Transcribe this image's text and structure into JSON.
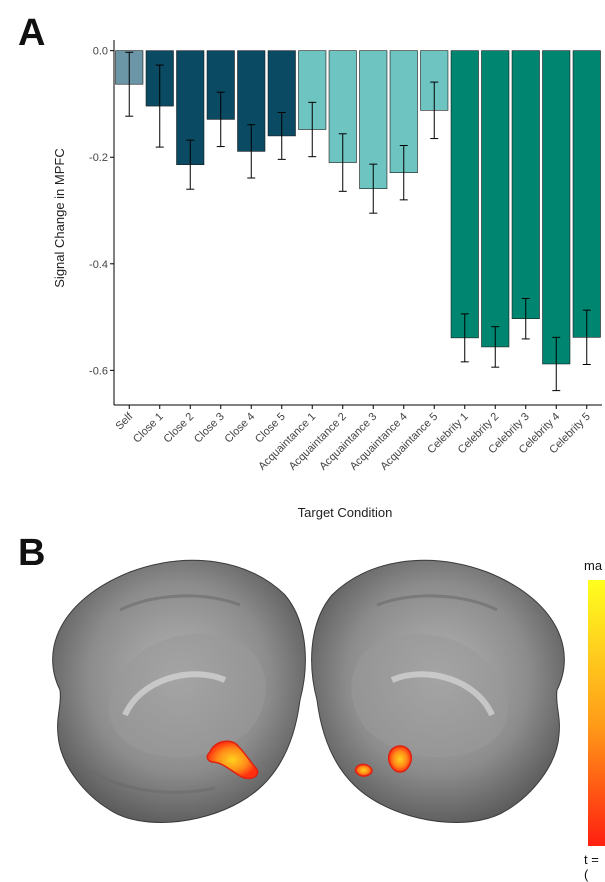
{
  "panels": {
    "a_label": "A",
    "b_label": "B"
  },
  "chart_data": {
    "type": "bar",
    "title": "",
    "xlabel": "Target Condition",
    "ylabel": "Signal Change in MPFC",
    "ylim": [
      -0.665,
      0.02
    ],
    "yticks": [
      0.0,
      -0.2,
      -0.4,
      -0.6
    ],
    "ytick_labels": [
      "0.0",
      "-0.2",
      "-0.4",
      "-0.6"
    ],
    "grid": false,
    "legend": "none",
    "categories": [
      "Self",
      "Close 1",
      "Close 2",
      "Close 3",
      "Close 4",
      "Close 5",
      "Acquaintance 1",
      "Acquaintance 2",
      "Acquaintance 3",
      "Acquaintance 4",
      "Acquaintance 5",
      "Celebrity 1",
      "Celebrity 2",
      "Celebrity 3",
      "Celebrity 4",
      "Celebrity 5"
    ],
    "values": [
      -0.063,
      -0.104,
      -0.214,
      -0.129,
      -0.189,
      -0.16,
      -0.148,
      -0.21,
      -0.259,
      -0.229,
      -0.112,
      -0.539,
      -0.556,
      -0.503,
      -0.588,
      -0.538
    ],
    "error": [
      0.06,
      0.077,
      0.046,
      0.051,
      0.05,
      0.044,
      0.051,
      0.054,
      0.046,
      0.051,
      0.053,
      0.045,
      0.038,
      0.038,
      0.05,
      0.051
    ],
    "colors": [
      "#6a96a8",
      "#0a4a63",
      "#0a4a63",
      "#0a4a63",
      "#0a4a63",
      "#0a4a63",
      "#6ec4c1",
      "#6ec4c1",
      "#6ec4c1",
      "#6ec4c1",
      "#6ec4c1",
      "#008570",
      "#008570",
      "#008570",
      "#008570",
      "#008570"
    ]
  },
  "colorbar": {
    "top_label": "ma",
    "bottom_label": "t = (",
    "colors": [
      "#ffff1e",
      "#ff9a18",
      "#ff2010"
    ]
  }
}
